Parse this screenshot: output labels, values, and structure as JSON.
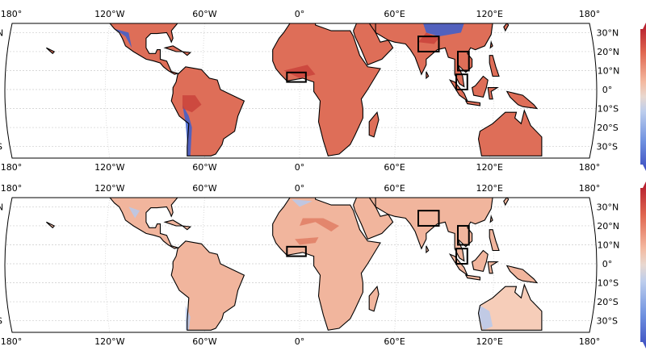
{
  "panels": [
    {
      "name": "top-map",
      "lon_labels_top": [
        "180°",
        "120°W",
        "60°W",
        "0°",
        "60°E",
        "120°E",
        "180°"
      ],
      "lon_labels_bottom": [
        "180°",
        "120°W",
        "60°W",
        "0°",
        "60°E",
        "120°E",
        "180°"
      ],
      "lat_labels": [
        "30°N",
        "20°N",
        "10°N",
        "0°",
        "10°S",
        "20°S",
        "30°S"
      ],
      "land_color": "#de6e58",
      "land_color_alt": "#ec9a80"
    },
    {
      "name": "bottom-map",
      "lon_labels_top": [
        "180°",
        "120°W",
        "60°W",
        "0°",
        "60°E",
        "120°E",
        "180°"
      ],
      "lon_labels_bottom": [
        "180°",
        "120°W",
        "60°W",
        "0°",
        "60°E",
        "120°E",
        "180°"
      ],
      "lat_labels": [
        "30°N",
        "20°N",
        "10°N",
        "0°",
        "10°S",
        "20°S",
        "30°S"
      ],
      "land_color": "#f1b59d",
      "land_color_alt": "#f6cdb9"
    }
  ],
  "colors": {
    "border": "#000000",
    "grid": "#cccccc",
    "cold": "#3b5fcf",
    "cold_light": "#b7c9ec",
    "hot": "#b2182b"
  }
}
